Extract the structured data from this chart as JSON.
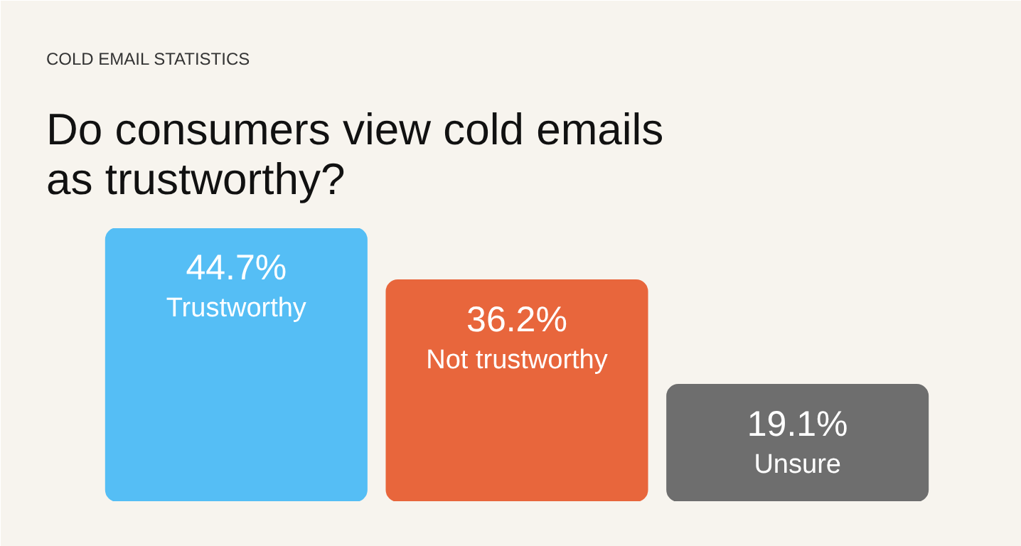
{
  "chart_data": {
    "type": "bar",
    "subtitle": "COLD EMAIL STATISTICS",
    "title": "Do consumers view cold emails as trustworthy?",
    "categories": [
      "Trustworthy",
      "Not trustworthy",
      "Unsure"
    ],
    "values": [
      44.7,
      36.2,
      19.1
    ],
    "colors": [
      "#55bef5",
      "#e8663c",
      "#6e6e6e"
    ],
    "value_labels": [
      "44.7%",
      "36.2%",
      "19.1%"
    ],
    "grid": false
  }
}
